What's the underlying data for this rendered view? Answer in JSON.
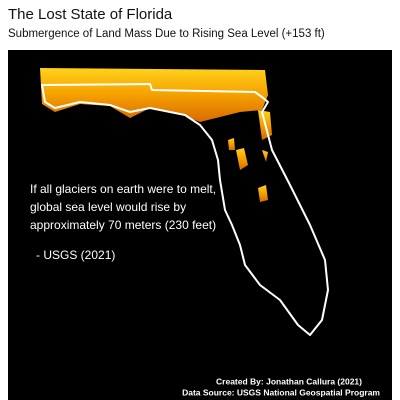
{
  "header": {
    "title": "The Lost State of Florida",
    "subtitle": "Submergence of Land Mass Due to Rising Sea Level (+153 ft)"
  },
  "quote": {
    "lines": [
      "If all glaciers on earth were to melt,",
      "global sea level would rise by",
      "approximately 70 meters (230 feet)"
    ],
    "source": "- USGS (2021)"
  },
  "credits": {
    "author": "Created By: Jonathan Callura (2021)",
    "data_source": "Data Source: USGS National Geospatial Program"
  }
}
